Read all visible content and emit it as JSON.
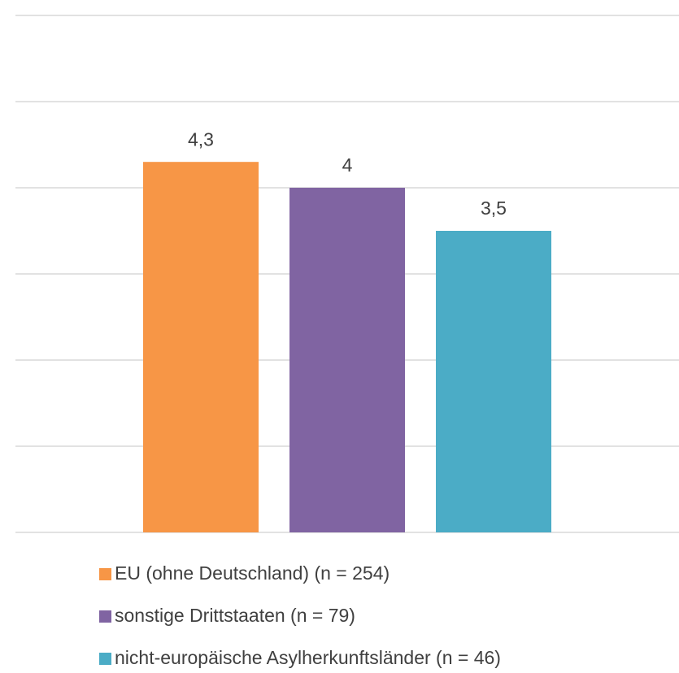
{
  "chart_data": {
    "type": "bar",
    "series": [
      {
        "name": "EU (ohne Deutschland) (n = 254)",
        "color": "#f79646",
        "values": [
          4.3
        ],
        "value_labels": [
          "4,3"
        ]
      },
      {
        "name": "sonstige Drittstaaten (n = 79)",
        "color": "#8064a2",
        "values": [
          4
        ],
        "value_labels": [
          "4"
        ]
      },
      {
        "name": "nicht-europäische Asylherkunftsländer (n = 46)",
        "color": "#4bacc6",
        "values": [
          3.5
        ],
        "value_labels": [
          "3,5"
        ]
      }
    ],
    "ylim": [
      0,
      6
    ],
    "yticks": [
      0,
      1,
      2,
      3,
      4,
      5,
      6
    ],
    "grid": true,
    "legend": "bottom"
  }
}
